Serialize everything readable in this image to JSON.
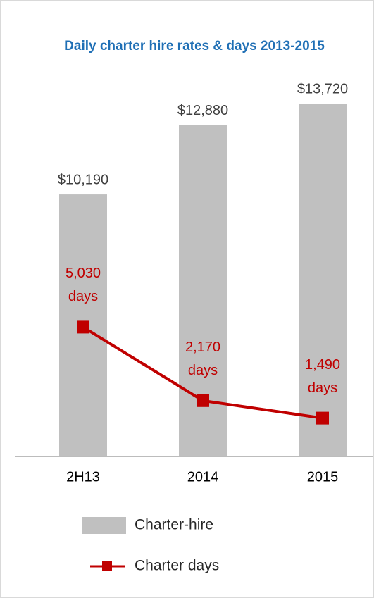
{
  "chart_data": {
    "type": "bar_line",
    "title": "Daily charter hire rates & days 2013-2015",
    "categories": [
      "2H13",
      "2014",
      "2015"
    ],
    "ylim": [
      0,
      14000
    ],
    "series": [
      {
        "name": "Charter-hire",
        "type": "bar",
        "color": "#c0c0c0",
        "values": [
          10190,
          12880,
          13720
        ],
        "value_labels": [
          "$10,190",
          "$12,880",
          "$13,720"
        ]
      },
      {
        "name": "Charter days",
        "type": "line",
        "color": "#c00000",
        "values": [
          5030,
          2170,
          1490
        ],
        "value_labels": [
          "5,030 days",
          "2,170 days",
          "1,490 days"
        ]
      }
    ]
  }
}
